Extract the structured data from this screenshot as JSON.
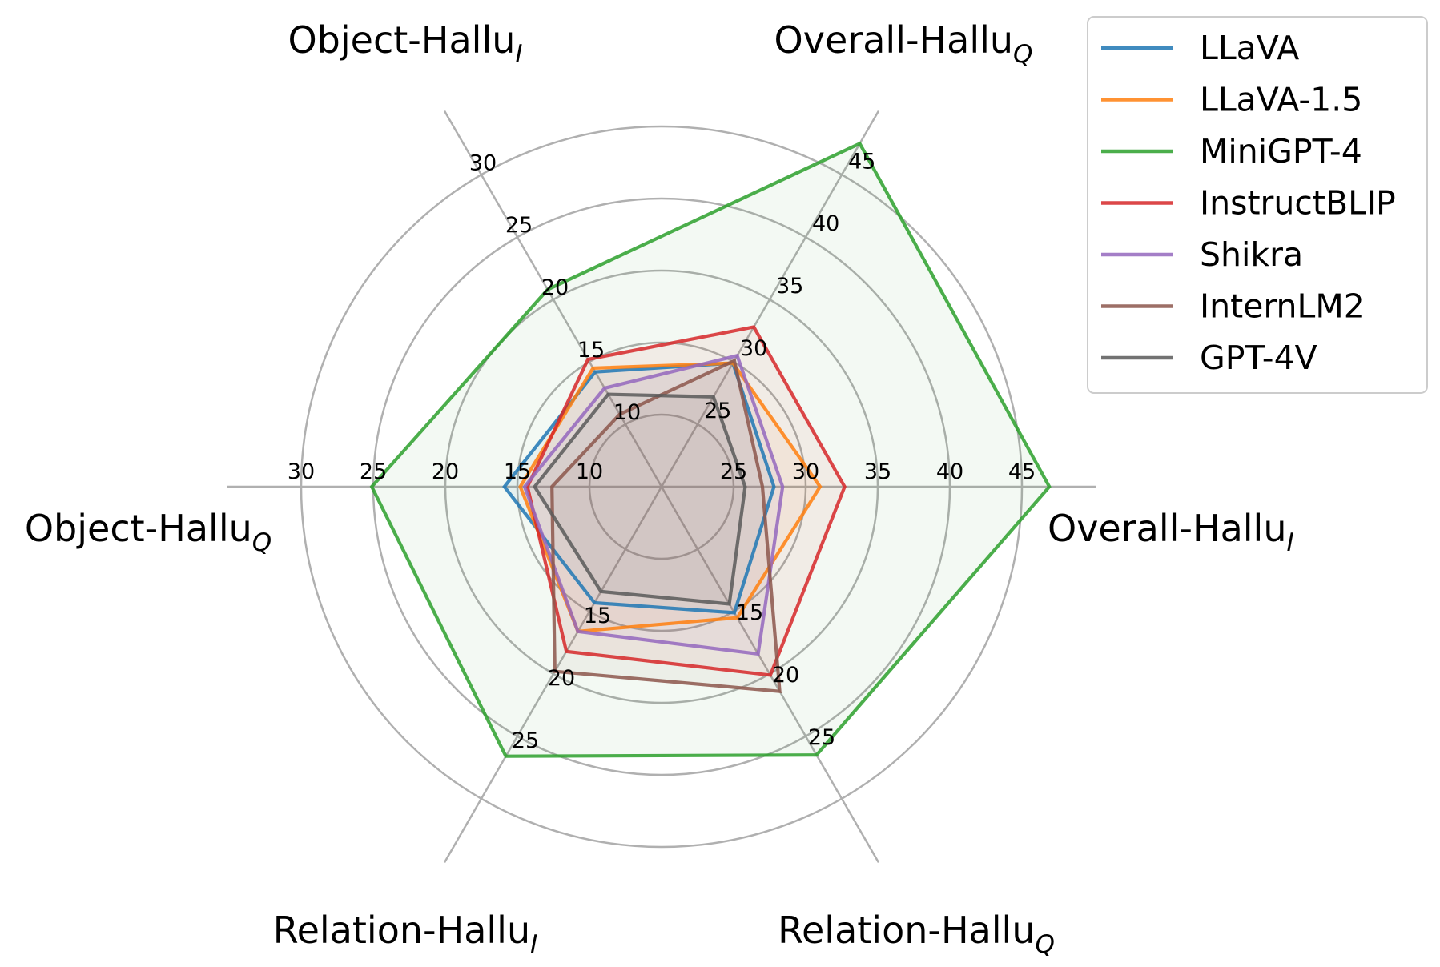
{
  "chart_data": {
    "type": "radar",
    "axes": [
      {
        "name": "Overall-Hallu",
        "sub": "I",
        "ticks": [
          25,
          30,
          35,
          40,
          45
        ],
        "tick_labels": [
          "25",
          "30",
          "35",
          "40",
          "45"
        ]
      },
      {
        "name": "Overall-Hallu",
        "sub": "Q",
        "ticks": [
          25,
          30,
          35,
          40,
          45
        ],
        "tick_labels": [
          "25",
          "30",
          "35",
          "40",
          "45"
        ]
      },
      {
        "name": "Object-Hallu",
        "sub": "I",
        "ticks": [
          10,
          15,
          20,
          25,
          30
        ],
        "tick_labels": [
          "10",
          "15",
          "20",
          "25",
          "30"
        ]
      },
      {
        "name": "Object-Hallu",
        "sub": "Q",
        "ticks": [
          10,
          15,
          20,
          25,
          30
        ],
        "tick_labels": [
          "10",
          "15",
          "20",
          "25",
          "30"
        ]
      },
      {
        "name": "Relation-Hallu",
        "sub": "I",
        "ticks": [
          15,
          20,
          25
        ],
        "tick_labels": [
          "15",
          "20",
          "25"
        ]
      },
      {
        "name": "Relation-Hallu",
        "sub": "Q",
        "ticks": [
          15,
          20,
          25
        ],
        "tick_labels": [
          "15",
          "20",
          "25"
        ]
      }
    ],
    "series": [
      {
        "name": "LLaVA",
        "color": "#1f77b4",
        "values": [
          27.8,
          29.9,
          14.2,
          15.9,
          14.3,
          15.1
        ]
      },
      {
        "name": "LLaVA-1.5",
        "color": "#ff7f0e",
        "values": [
          31.0,
          29.9,
          14.5,
          14.8,
          16.6,
          15.5
        ]
      },
      {
        "name": "MiniGPT-4",
        "color": "#2ca02c",
        "values": [
          46.9,
          47.5,
          20.8,
          25.1,
          26.6,
          26.5
        ]
      },
      {
        "name": "InstructBLIP",
        "color": "#d62728",
        "values": [
          32.7,
          32.8,
          15.2,
          14.3,
          18.2,
          20.1
        ]
      },
      {
        "name": "Shikra",
        "color": "#9467bd",
        "values": [
          28.4,
          30.5,
          12.9,
          14.5,
          16.6,
          18.4
        ]
      },
      {
        "name": "InternLM2",
        "color": "#8c564b",
        "values": [
          27.0,
          30.1,
          10.8,
          12.6,
          19.8,
          21.4
        ]
      },
      {
        "name": "GPT-4V",
        "color": "#595959",
        "values": [
          25.8,
          27.2,
          12.4,
          13.8,
          13.4,
          14.4
        ]
      }
    ],
    "legend": "top-right",
    "grid": true
  }
}
